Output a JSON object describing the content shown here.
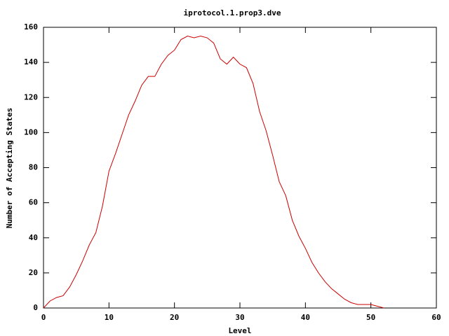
{
  "chart_data": {
    "type": "line",
    "title": "iprotocol.1.prop3.dve",
    "x_label": "Level",
    "y_label": "Number of Accepting States",
    "x": [
      0,
      1,
      2,
      3,
      4,
      5,
      6,
      7,
      8,
      9,
      10,
      11,
      12,
      13,
      14,
      15,
      16,
      17,
      18,
      19,
      20,
      21,
      22,
      23,
      24,
      25,
      26,
      27,
      28,
      29,
      30,
      31,
      32,
      33,
      34,
      35,
      36,
      37,
      38,
      39,
      40,
      41,
      42,
      43,
      44,
      45,
      46,
      47,
      48,
      49,
      50,
      51,
      52
    ],
    "values": [
      0,
      4,
      6,
      7,
      12,
      19,
      27,
      36,
      43,
      58,
      78,
      88,
      99,
      110,
      118,
      127,
      132,
      132,
      139,
      144,
      147,
      153,
      155,
      154,
      155,
      154,
      151,
      142,
      139,
      143,
      139,
      137,
      128,
      112,
      101,
      87,
      72,
      64,
      50,
      41,
      34,
      26,
      20,
      15,
      11,
      8,
      5,
      3,
      2,
      2,
      2,
      1,
      0
    ],
    "color": "#cc0000",
    "xlim": [
      0,
      60
    ],
    "xticks": [
      0,
      10,
      20,
      30,
      40,
      50,
      60
    ],
    "ylim": [
      0,
      160
    ],
    "yticks": [
      0,
      20,
      40,
      60,
      80,
      100,
      120,
      140,
      160
    ]
  }
}
